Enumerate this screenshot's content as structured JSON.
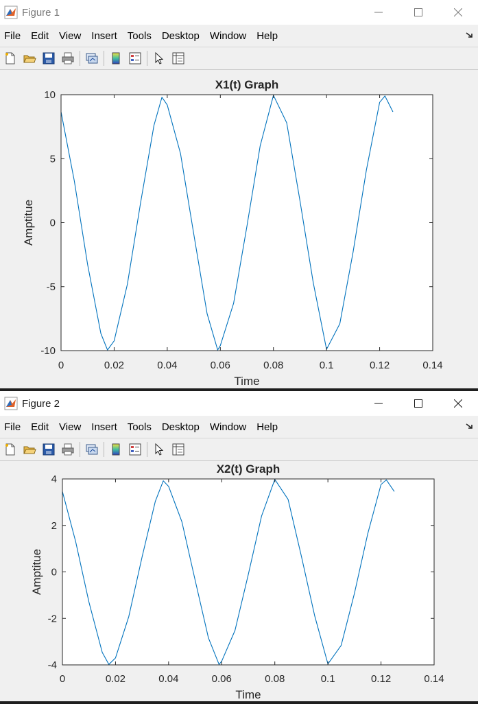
{
  "windows": [
    {
      "title": "Figure 1",
      "menu": [
        "File",
        "Edit",
        "View",
        "Insert",
        "Tools",
        "Desktop",
        "Window",
        "Help"
      ]
    },
    {
      "title": "Figure 2",
      "menu": [
        "File",
        "Edit",
        "View",
        "Insert",
        "Tools",
        "Desktop",
        "Window",
        "Help"
      ]
    }
  ],
  "icons": {
    "toolbar": [
      "new-figure-icon",
      "open-file-icon",
      "save-icon",
      "print-icon",
      "link-plot-icon",
      "insert-colorbar-icon",
      "insert-legend-icon",
      "pointer-icon",
      "property-inspector-icon"
    ],
    "window": [
      "minimize-icon",
      "maximize-icon",
      "close-icon"
    ]
  },
  "colors": {
    "line": "#0072BD",
    "axes_bg": "#ffffff",
    "figure_bg": "#f0f0f0"
  },
  "chart_data": [
    {
      "type": "line",
      "title": "X1(t) Graph",
      "xlabel": "Time",
      "ylabel": "Amptitue",
      "xlim": [
        0,
        0.14
      ],
      "ylim": [
        -10,
        10
      ],
      "xticks": [
        0,
        0.02,
        0.04,
        0.06,
        0.08,
        0.1,
        0.12,
        0.14
      ],
      "xtick_labels": [
        "0",
        "0.02",
        "0.04",
        "0.06",
        "0.08",
        "0.1",
        "0.12",
        "0.14"
      ],
      "yticks": [
        -10,
        -5,
        0,
        5,
        10
      ],
      "ytick_labels": [
        "-10",
        "-5",
        "0",
        "5",
        "10"
      ],
      "grid": false,
      "series": [
        {
          "x": [
            0,
            0.005,
            0.01,
            0.015,
            0.0175,
            0.02,
            0.025,
            0.03,
            0.035,
            0.038,
            0.04,
            0.045,
            0.05,
            0.055,
            0.059,
            0.06,
            0.065,
            0.07,
            0.075,
            0.08,
            0.085,
            0.09,
            0.095,
            0.1,
            0.105,
            0.11,
            0.115,
            0.12,
            0.122,
            0.125
          ],
          "y": [
            8.66,
            3.26,
            -3.26,
            -8.66,
            -9.95,
            -9.24,
            -4.8,
            1.6,
            7.6,
            9.8,
            9.2,
            5.4,
            -0.9,
            -7.1,
            -9.95,
            -9.6,
            -6.3,
            -0.3,
            6.0,
            9.95,
            7.8,
            1.7,
            -4.7,
            -9.9,
            -7.9,
            -2.3,
            4.1,
            9.4,
            9.9,
            8.66
          ]
        }
      ]
    },
    {
      "type": "line",
      "title": "X2(t) Graph",
      "xlabel": "Time",
      "ylabel": "Amptitue",
      "xlim": [
        0,
        0.14
      ],
      "ylim": [
        -4,
        4
      ],
      "xticks": [
        0,
        0.02,
        0.04,
        0.06,
        0.08,
        0.1,
        0.12,
        0.14
      ],
      "xtick_labels": [
        "0",
        "0.02",
        "0.04",
        "0.06",
        "0.08",
        "0.1",
        "0.12",
        "0.14"
      ],
      "yticks": [
        -4,
        -2,
        0,
        2,
        4
      ],
      "ytick_labels": [
        "-4",
        "-2",
        "0",
        "2",
        "4"
      ],
      "grid": false,
      "series": [
        {
          "x": [
            0,
            0.005,
            0.01,
            0.015,
            0.0175,
            0.02,
            0.025,
            0.03,
            0.035,
            0.038,
            0.04,
            0.045,
            0.05,
            0.055,
            0.059,
            0.06,
            0.065,
            0.07,
            0.075,
            0.08,
            0.085,
            0.09,
            0.095,
            0.1,
            0.105,
            0.11,
            0.115,
            0.12,
            0.122,
            0.125
          ],
          "y": [
            3.46,
            1.3,
            -1.3,
            -3.46,
            -3.98,
            -3.7,
            -1.92,
            0.64,
            3.04,
            3.92,
            3.68,
            2.16,
            -0.36,
            -2.84,
            -3.98,
            -3.84,
            -2.52,
            -0.12,
            2.4,
            3.98,
            3.12,
            0.68,
            -1.88,
            -3.96,
            -3.16,
            -0.92,
            1.64,
            3.76,
            3.96,
            3.46
          ]
        }
      ]
    }
  ]
}
